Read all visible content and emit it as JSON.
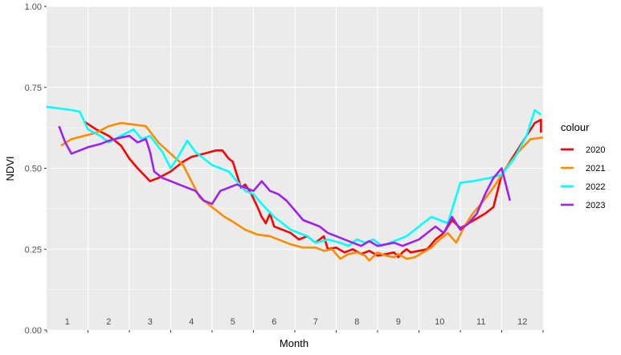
{
  "chart_data": {
    "type": "line",
    "title": "",
    "xlabel": "Month",
    "ylabel": "NDVI",
    "ylim": [
      0,
      1
    ],
    "xlim": [
      0.5,
      12.5
    ],
    "grid": true,
    "background": "#ebebeb",
    "legend_position": "right",
    "legend_title": "colour",
    "y_ticks": [
      "0.00",
      "0.25",
      "0.50",
      "0.75",
      "1.00"
    ],
    "y_tick_values": [
      0,
      0.25,
      0.5,
      0.75,
      1.0
    ],
    "month_labels": [
      "1",
      "2",
      "3",
      "4",
      "5",
      "6",
      "7",
      "8",
      "9",
      "10",
      "11",
      "12"
    ],
    "series": [
      {
        "name": "2020",
        "color": "#ff0000",
        "x": [
          1.4,
          1.7,
          2.0,
          2.3,
          2.5,
          2.7,
          3.0,
          3.2,
          3.5,
          3.8,
          4.0,
          4.3,
          4.6,
          4.75,
          4.9,
          5.0,
          5.1,
          5.2,
          5.3,
          5.45,
          5.6,
          5.7,
          5.8,
          5.9,
          6.0,
          6.2,
          6.4,
          6.6,
          6.8,
          7.0,
          7.2,
          7.3,
          7.5,
          7.7,
          7.9,
          8.1,
          8.3,
          8.5,
          8.7,
          8.9,
          9.0,
          9.1,
          9.2,
          9.3,
          9.5,
          9.7,
          9.9,
          10.1,
          10.3,
          10.5,
          10.7,
          10.9,
          11.1,
          11.3,
          11.5,
          11.7,
          11.9,
          12.1,
          12.3,
          12.45,
          12.45
        ],
        "y": [
          0.645,
          0.62,
          0.6,
          0.57,
          0.53,
          0.5,
          0.46,
          0.47,
          0.49,
          0.52,
          0.535,
          0.545,
          0.555,
          0.555,
          0.53,
          0.52,
          0.48,
          0.44,
          0.45,
          0.42,
          0.38,
          0.35,
          0.33,
          0.36,
          0.32,
          0.31,
          0.3,
          0.28,
          0.29,
          0.27,
          0.29,
          0.25,
          0.255,
          0.24,
          0.25,
          0.235,
          0.245,
          0.23,
          0.235,
          0.24,
          0.225,
          0.24,
          0.25,
          0.24,
          0.245,
          0.25,
          0.28,
          0.3,
          0.34,
          0.315,
          0.33,
          0.345,
          0.36,
          0.38,
          0.48,
          0.52,
          0.56,
          0.6,
          0.64,
          0.65,
          0.61
        ]
      },
      {
        "name": "2021",
        "color": "#ff8c00",
        "x": [
          0.85,
          1.1,
          1.4,
          1.7,
          2.0,
          2.3,
          2.6,
          2.9,
          3.2,
          3.5,
          3.8,
          4.0,
          4.2,
          4.5,
          4.8,
          5.0,
          5.3,
          5.6,
          5.9,
          6.1,
          6.4,
          6.7,
          7.0,
          7.2,
          7.4,
          7.6,
          7.8,
          8.0,
          8.2,
          8.3,
          8.5,
          8.7,
          8.9,
          9.0,
          9.2,
          9.4,
          9.6,
          9.8,
          10.0,
          10.2,
          10.4,
          10.6,
          10.8,
          11.0,
          11.3,
          11.6,
          11.9,
          12.2,
          12.5
        ],
        "y": [
          0.57,
          0.59,
          0.6,
          0.61,
          0.63,
          0.64,
          0.635,
          0.63,
          0.58,
          0.545,
          0.51,
          0.46,
          0.41,
          0.38,
          0.35,
          0.335,
          0.31,
          0.295,
          0.29,
          0.28,
          0.265,
          0.255,
          0.255,
          0.245,
          0.25,
          0.22,
          0.235,
          0.24,
          0.23,
          0.215,
          0.24,
          0.23,
          0.225,
          0.235,
          0.22,
          0.225,
          0.24,
          0.255,
          0.28,
          0.3,
          0.27,
          0.32,
          0.36,
          0.39,
          0.44,
          0.5,
          0.55,
          0.59,
          0.595
        ]
      },
      {
        "name": "2022",
        "color": "#00ffff",
        "x": [
          0.5,
          0.8,
          1.1,
          1.3,
          1.5,
          1.8,
          2.0,
          2.3,
          2.6,
          2.8,
          3.0,
          3.3,
          3.5,
          3.7,
          3.9,
          4.1,
          4.3,
          4.5,
          4.7,
          4.9,
          5.1,
          5.3,
          5.5,
          5.7,
          6.0,
          6.2,
          6.4,
          6.6,
          6.8,
          7.0,
          7.3,
          7.6,
          7.8,
          8.0,
          8.2,
          8.4,
          8.6,
          8.8,
          9.0,
          9.2,
          9.4,
          9.6,
          9.8,
          10.0,
          10.2,
          10.5,
          10.8,
          11.2,
          11.5,
          11.8,
          12.1,
          12.3,
          12.45
        ],
        "y": [
          0.69,
          0.685,
          0.68,
          0.675,
          0.62,
          0.6,
          0.58,
          0.6,
          0.62,
          0.59,
          0.6,
          0.55,
          0.5,
          0.54,
          0.585,
          0.55,
          0.53,
          0.51,
          0.5,
          0.49,
          0.46,
          0.43,
          0.42,
          0.39,
          0.35,
          0.33,
          0.31,
          0.3,
          0.29,
          0.27,
          0.28,
          0.27,
          0.26,
          0.28,
          0.27,
          0.28,
          0.26,
          0.27,
          0.28,
          0.29,
          0.31,
          0.33,
          0.35,
          0.34,
          0.33,
          0.455,
          0.46,
          0.47,
          0.48,
          0.53,
          0.6,
          0.68,
          0.665
        ]
      },
      {
        "name": "2023",
        "color": "#a020f0",
        "x": [
          0.8,
          0.95,
          1.1,
          1.3,
          1.5,
          1.8,
          2.0,
          2.3,
          2.5,
          2.7,
          2.9,
          3.0,
          3.1,
          3.3,
          3.5,
          3.7,
          3.9,
          4.1,
          4.3,
          4.5,
          4.7,
          4.9,
          5.1,
          5.3,
          5.5,
          5.7,
          5.9,
          6.1,
          6.3,
          6.5,
          6.7,
          6.9,
          7.1,
          7.3,
          7.5,
          7.7,
          7.9,
          8.1,
          8.3,
          8.5,
          8.7,
          8.9,
          9.1,
          9.3,
          9.5,
          9.7,
          9.9,
          10.1,
          10.3,
          10.5,
          10.7,
          10.9,
          11.1,
          11.3,
          11.5,
          11.7
        ],
        "y": [
          0.63,
          0.58,
          0.545,
          0.555,
          0.565,
          0.575,
          0.585,
          0.595,
          0.6,
          0.58,
          0.59,
          0.55,
          0.49,
          0.47,
          0.46,
          0.45,
          0.44,
          0.43,
          0.4,
          0.39,
          0.43,
          0.44,
          0.45,
          0.44,
          0.43,
          0.46,
          0.43,
          0.42,
          0.4,
          0.37,
          0.34,
          0.33,
          0.32,
          0.3,
          0.29,
          0.28,
          0.27,
          0.26,
          0.275,
          0.26,
          0.265,
          0.27,
          0.26,
          0.27,
          0.28,
          0.3,
          0.32,
          0.3,
          0.35,
          0.31,
          0.33,
          0.36,
          0.42,
          0.47,
          0.5,
          0.4
        ]
      }
    ]
  }
}
